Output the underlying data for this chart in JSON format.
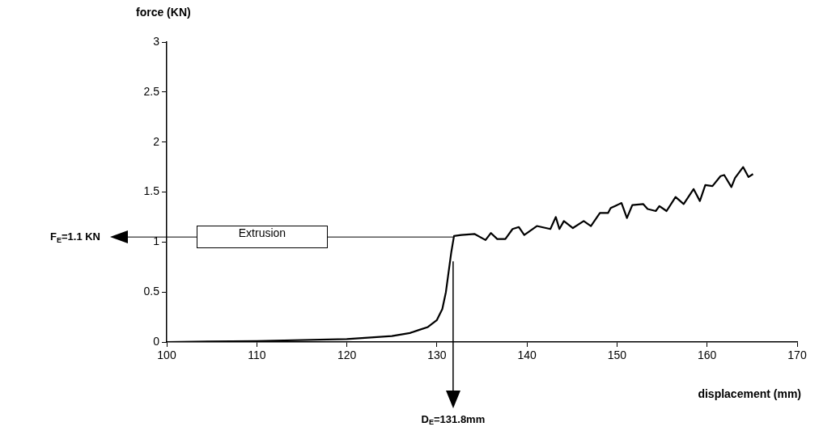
{
  "chart_data": {
    "type": "line",
    "xlabel": "displacement (mm)",
    "ylabel": "force (KN)",
    "xlim": [
      100,
      170
    ],
    "xticks": [
      100,
      110,
      120,
      130,
      140,
      150,
      160,
      170
    ],
    "ylim": [
      0,
      3
    ],
    "yticks": [
      0,
      0.5,
      1,
      1.5,
      2,
      2.5,
      3
    ],
    "grid": false,
    "legend": false,
    "marker": "none",
    "line_style": "solid",
    "series": [
      {
        "color": "#000000",
        "x": [
          100,
          110,
          120,
          125,
          127,
          128,
          129,
          130,
          130.6,
          131,
          131.3,
          131.6,
          131.9,
          132.7,
          134.2,
          135.4,
          136.0,
          136.7,
          137.6,
          138.4,
          139.1,
          139.7,
          141.1,
          142.6,
          143.2,
          143.6,
          144.1,
          145.1,
          146.3,
          147.1,
          148.1,
          149.0,
          149.3,
          150.5,
          151.1,
          151.7,
          152.9,
          153.4,
          154.3,
          154.7,
          155.5,
          156.5,
          157.4,
          158.5,
          159.2,
          159.8,
          160.6,
          161.5,
          161.9,
          162.7,
          163.1,
          164.0,
          164.6,
          165.1
        ],
        "values": [
          0,
          0.01,
          0.03,
          0.06,
          0.09,
          0.12,
          0.15,
          0.22,
          0.33,
          0.5,
          0.7,
          0.9,
          1.06,
          1.07,
          1.08,
          1.02,
          1.09,
          1.03,
          1.03,
          1.13,
          1.15,
          1.07,
          1.16,
          1.13,
          1.25,
          1.13,
          1.21,
          1.14,
          1.21,
          1.16,
          1.29,
          1.29,
          1.34,
          1.39,
          1.24,
          1.37,
          1.38,
          1.33,
          1.31,
          1.36,
          1.31,
          1.45,
          1.38,
          1.53,
          1.41,
          1.57,
          1.56,
          1.66,
          1.67,
          1.55,
          1.64,
          1.75,
          1.65,
          1.68
        ]
      }
    ],
    "ref_lines": [
      {
        "axis": "y",
        "value": 1.05,
        "label": "Extrusion",
        "color": "#000000"
      },
      {
        "axis": "x",
        "value": 131.8,
        "label": "D$_{E}$=131.8mm",
        "color": "#000000"
      }
    ],
    "annotations": [
      "F$_{E}$=1.1 KN"
    ]
  }
}
